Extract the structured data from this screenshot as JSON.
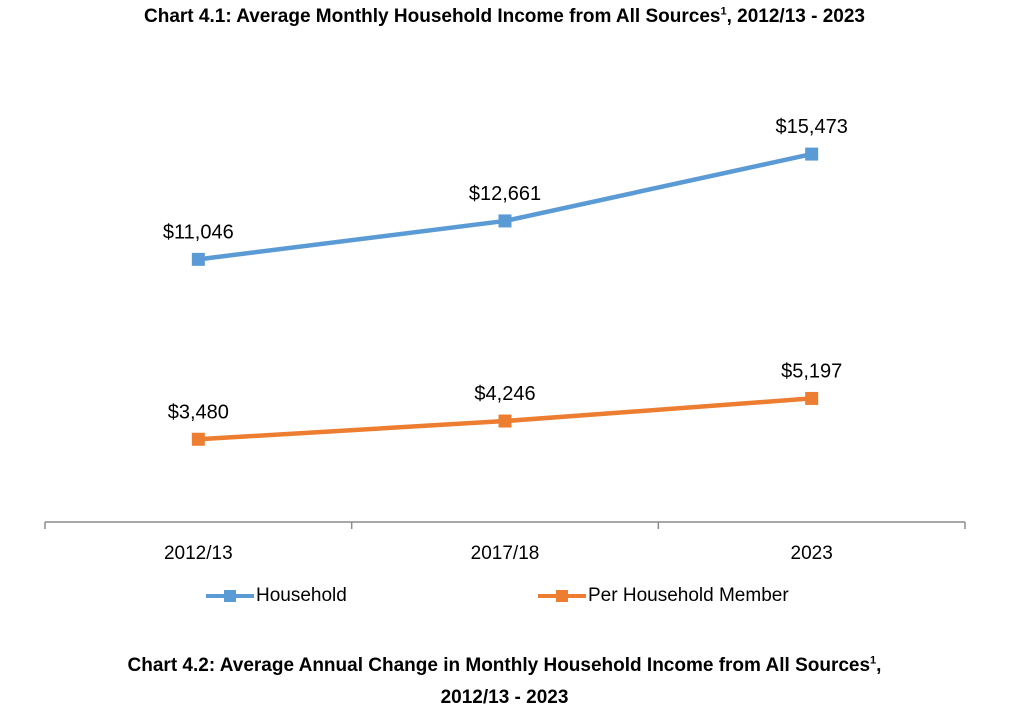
{
  "titles": {
    "chart1_main": "Chart 4.1: Average Monthly Household Income from All Sources",
    "chart1_sup": "1",
    "chart1_tail": ", 2012/13 - 2023",
    "chart2_main": "Chart 4.2: Average Annual Change in Monthly Household Income from All Sources",
    "chart2_sup": "1",
    "chart2_tail": ",",
    "chart2_line2": "2012/13 - 2023"
  },
  "chart_data": {
    "type": "line",
    "title": "Chart 4.1: Average Monthly Household Income from All Sources1, 2012/13 - 2023",
    "categories": [
      "2012/13",
      "2017/18",
      "2023"
    ],
    "series": [
      {
        "name": "Household",
        "values": [
          11046,
          12661,
          15473
        ],
        "labels": [
          "$11,046",
          "$12,661",
          "$15,473"
        ],
        "color": "#5b9bd5"
      },
      {
        "name": "Per Household Member",
        "values": [
          3480,
          4246,
          5197
        ],
        "labels": [
          "$3,480",
          "$4,246",
          "$5,197"
        ],
        "color": "#ed7d31"
      }
    ],
    "ylim": [
      0,
      18000
    ],
    "y_axis_visible": false,
    "grid": false,
    "legend_position": "bottom"
  }
}
